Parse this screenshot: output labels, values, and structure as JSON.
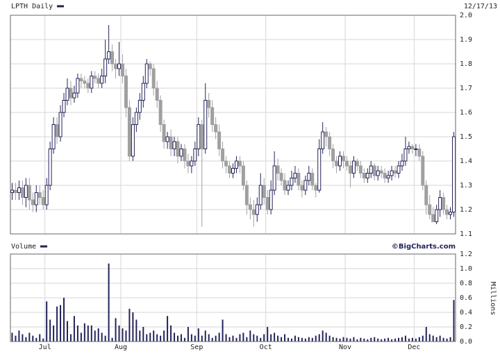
{
  "chart_data": [
    {
      "type": "candlestick",
      "title": "LPTH Daily",
      "date": "12/17/13",
      "up_color": "#22225a",
      "down_color": "#a0a0a0",
      "grid": true,
      "ylim": [
        1.1,
        2.0
      ],
      "yticks": [
        1.1,
        1.2,
        1.3,
        1.4,
        1.5,
        1.6,
        1.7,
        1.8,
        1.9,
        {
          "value": 2,
          "label": "2.0"
        }
      ],
      "open": [
        1.27,
        1.28,
        1.27,
        1.29,
        1.25,
        1.3,
        1.24,
        1.22,
        1.27,
        1.25,
        1.22,
        1.3,
        1.45,
        1.55,
        1.5,
        1.6,
        1.65,
        1.7,
        1.66,
        1.68,
        1.74,
        1.73,
        1.72,
        1.7,
        1.75,
        1.74,
        1.72,
        1.75,
        1.82,
        1.85,
        1.8,
        1.78,
        1.8,
        1.75,
        1.62,
        1.42,
        1.55,
        1.6,
        1.65,
        1.72,
        1.8,
        1.78,
        1.7,
        1.65,
        1.55,
        1.48,
        1.5,
        1.45,
        1.48,
        1.42,
        1.45,
        1.4,
        1.38,
        1.4,
        1.45,
        1.55,
        1.45,
        1.65,
        1.62,
        1.55,
        1.52,
        1.45,
        1.4,
        1.38,
        1.35,
        1.37,
        1.4,
        1.38,
        1.3,
        1.22,
        1.2,
        1.18,
        1.22,
        1.3,
        1.25,
        1.2,
        1.28,
        1.38,
        1.35,
        1.32,
        1.28,
        1.3,
        1.33,
        1.35,
        1.3,
        1.28,
        1.32,
        1.35,
        1.3,
        1.28,
        1.45,
        1.52,
        1.5,
        1.45,
        1.4,
        1.38,
        1.42,
        1.4,
        1.38,
        1.35,
        1.4,
        1.38,
        1.35,
        1.33,
        1.35,
        1.38,
        1.34,
        1.36,
        1.35,
        1.33,
        1.34,
        1.36,
        1.35,
        1.38,
        1.4,
        1.45,
        1.46,
        1.45,
        1.45,
        1.42,
        1.3,
        1.22,
        1.18,
        1.15,
        1.2,
        1.25,
        1.2,
        1.18,
        1.19
      ],
      "high": [
        1.31,
        1.31,
        1.32,
        1.32,
        1.33,
        1.33,
        1.27,
        1.3,
        1.3,
        1.28,
        1.33,
        1.48,
        1.58,
        1.58,
        1.63,
        1.68,
        1.74,
        1.73,
        1.71,
        1.76,
        1.76,
        1.75,
        1.74,
        1.77,
        1.77,
        1.76,
        1.78,
        1.9,
        1.96,
        1.88,
        1.82,
        1.89,
        1.84,
        1.78,
        1.65,
        1.58,
        1.62,
        1.68,
        1.75,
        1.82,
        1.81,
        1.8,
        1.73,
        1.67,
        1.57,
        1.52,
        1.53,
        1.5,
        1.5,
        1.47,
        1.47,
        1.43,
        1.42,
        1.48,
        1.58,
        1.57,
        1.72,
        1.68,
        1.65,
        1.58,
        1.55,
        1.48,
        1.42,
        1.4,
        1.39,
        1.42,
        1.42,
        1.4,
        1.32,
        1.25,
        1.24,
        1.25,
        1.35,
        1.33,
        1.28,
        1.32,
        1.44,
        1.41,
        1.37,
        1.35,
        1.32,
        1.36,
        1.38,
        1.37,
        1.32,
        1.34,
        1.38,
        1.37,
        1.31,
        1.49,
        1.56,
        1.54,
        1.52,
        1.47,
        1.42,
        1.44,
        1.44,
        1.42,
        1.4,
        1.42,
        1.41,
        1.4,
        1.37,
        1.37,
        1.4,
        1.39,
        1.38,
        1.38,
        1.37,
        1.36,
        1.38,
        1.38,
        1.4,
        1.43,
        1.5,
        1.48,
        1.47,
        1.47,
        1.47,
        1.44,
        1.32,
        1.26,
        1.21,
        1.22,
        1.28,
        1.27,
        1.22,
        1.21,
        1.52
      ],
      "low": [
        1.24,
        1.24,
        1.24,
        1.22,
        1.21,
        1.2,
        1.19,
        1.19,
        1.22,
        1.2,
        1.2,
        1.28,
        1.43,
        1.47,
        1.48,
        1.58,
        1.63,
        1.63,
        1.64,
        1.66,
        1.7,
        1.7,
        1.68,
        1.68,
        1.72,
        1.7,
        1.7,
        1.72,
        1.8,
        1.77,
        1.74,
        1.75,
        1.72,
        1.58,
        1.4,
        1.4,
        1.52,
        1.57,
        1.62,
        1.7,
        1.75,
        1.67,
        1.62,
        1.52,
        1.45,
        1.45,
        1.42,
        1.42,
        1.39,
        1.4,
        1.37,
        1.35,
        1.35,
        1.38,
        1.42,
        1.13,
        1.43,
        1.58,
        1.52,
        1.49,
        1.42,
        1.37,
        1.35,
        1.33,
        1.33,
        1.35,
        1.35,
        1.28,
        1.18,
        1.16,
        1.13,
        1.15,
        1.2,
        1.22,
        1.18,
        1.18,
        1.26,
        1.32,
        1.3,
        1.26,
        1.26,
        1.28,
        1.31,
        1.28,
        1.25,
        1.26,
        1.3,
        1.28,
        1.25,
        1.27,
        1.43,
        1.46,
        1.42,
        1.37,
        1.35,
        1.36,
        1.37,
        1.36,
        1.29,
        1.33,
        1.36,
        1.33,
        1.31,
        1.31,
        1.33,
        1.32,
        1.32,
        1.33,
        1.31,
        1.31,
        1.32,
        1.33,
        1.33,
        1.36,
        1.38,
        1.43,
        1.43,
        1.42,
        1.4,
        1.28,
        1.18,
        1.16,
        1.15,
        1.14,
        1.17,
        1.18,
        1.16,
        1.16,
        1.17
      ],
      "close": [
        1.28,
        1.27,
        1.29,
        1.25,
        1.3,
        1.24,
        1.22,
        1.27,
        1.25,
        1.22,
        1.3,
        1.45,
        1.55,
        1.5,
        1.6,
        1.65,
        1.7,
        1.66,
        1.68,
        1.74,
        1.73,
        1.72,
        1.7,
        1.75,
        1.74,
        1.72,
        1.75,
        1.82,
        1.85,
        1.8,
        1.78,
        1.8,
        1.75,
        1.62,
        1.42,
        1.55,
        1.6,
        1.65,
        1.72,
        1.8,
        1.78,
        1.7,
        1.65,
        1.55,
        1.48,
        1.5,
        1.45,
        1.48,
        1.42,
        1.45,
        1.4,
        1.38,
        1.4,
        1.45,
        1.55,
        1.45,
        1.65,
        1.62,
        1.55,
        1.52,
        1.45,
        1.4,
        1.38,
        1.35,
        1.37,
        1.4,
        1.38,
        1.3,
        1.22,
        1.2,
        1.18,
        1.22,
        1.3,
        1.25,
        1.2,
        1.28,
        1.38,
        1.35,
        1.32,
        1.28,
        1.3,
        1.33,
        1.35,
        1.3,
        1.28,
        1.32,
        1.35,
        1.3,
        1.28,
        1.45,
        1.52,
        1.5,
        1.45,
        1.4,
        1.38,
        1.42,
        1.4,
        1.38,
        1.35,
        1.4,
        1.38,
        1.35,
        1.33,
        1.35,
        1.38,
        1.34,
        1.36,
        1.35,
        1.33,
        1.34,
        1.36,
        1.35,
        1.38,
        1.4,
        1.45,
        1.46,
        1.45,
        1.45,
        1.42,
        1.3,
        1.22,
        1.18,
        1.15,
        1.2,
        1.25,
        1.2,
        1.18,
        1.19,
        1.5
      ]
    },
    {
      "type": "bar",
      "title": "Volume",
      "source": "©BigCharts.com",
      "ylabel": "Millions",
      "color": "#22225a",
      "grid": true,
      "ylim": [
        0,
        1.2
      ],
      "yticks": [
        {
          "value": 0,
          "label": "0.0"
        },
        0.2,
        0.4,
        0.6,
        0.8,
        {
          "value": 1,
          "label": "1.0"
        },
        1.2
      ],
      "categories": [
        null,
        null,
        null,
        null,
        null,
        null,
        null,
        null,
        null,
        null,
        "Jul",
        null,
        null,
        null,
        null,
        null,
        null,
        null,
        null,
        null,
        null,
        null,
        null,
        null,
        null,
        null,
        null,
        null,
        null,
        null,
        null,
        null,
        "Aug",
        null,
        null,
        null,
        null,
        null,
        null,
        null,
        null,
        null,
        null,
        null,
        null,
        null,
        null,
        null,
        null,
        null,
        null,
        null,
        null,
        null,
        "Sep",
        null,
        null,
        null,
        null,
        null,
        null,
        null,
        null,
        null,
        null,
        null,
        null,
        null,
        null,
        null,
        null,
        null,
        null,
        null,
        "Oct",
        null,
        null,
        null,
        null,
        null,
        null,
        null,
        null,
        null,
        null,
        null,
        null,
        null,
        null,
        null,
        null,
        null,
        null,
        null,
        null,
        null,
        null,
        "Nov",
        null,
        null,
        null,
        null,
        null,
        null,
        null,
        null,
        null,
        null,
        null,
        null,
        null,
        null,
        null,
        null,
        null,
        null,
        null,
        "Dec",
        null,
        null,
        null,
        null,
        null,
        null,
        null,
        null,
        null,
        null,
        null
      ],
      "values": [
        0.12,
        0.08,
        0.15,
        0.1,
        0.06,
        0.12,
        0.08,
        0.05,
        0.1,
        0.04,
        0.55,
        0.3,
        0.22,
        0.48,
        0.5,
        0.6,
        0.28,
        0.1,
        0.35,
        0.22,
        0.12,
        0.25,
        0.22,
        0.22,
        0.15,
        0.18,
        0.12,
        0.08,
        1.07,
        0.05,
        0.32,
        0.22,
        0.18,
        0.15,
        0.45,
        0.4,
        0.3,
        0.15,
        0.2,
        0.1,
        0.12,
        0.15,
        0.1,
        0.08,
        0.15,
        0.35,
        0.22,
        0.12,
        0.08,
        0.1,
        0.05,
        0.2,
        0.1,
        0.08,
        0.18,
        0.08,
        0.15,
        0.1,
        0.05,
        0.08,
        0.12,
        0.3,
        0.1,
        0.06,
        0.08,
        0.05,
        0.1,
        0.12,
        0.06,
        0.15,
        0.1,
        0.08,
        0.05,
        0.1,
        0.2,
        0.1,
        0.12,
        0.08,
        0.06,
        0.1,
        0.05,
        0.04,
        0.08,
        0.06,
        0.05,
        0.04,
        0.06,
        0.05,
        0.08,
        0.1,
        0.15,
        0.12,
        0.08,
        0.06,
        0.05,
        0.04,
        0.06,
        0.05,
        0.04,
        0.06,
        0.03,
        0.05,
        0.04,
        0.03,
        0.05,
        0.06,
        0.04,
        0.03,
        0.04,
        0.05,
        0.03,
        0.04,
        0.05,
        0.06,
        0.08,
        0.04,
        0.05,
        0.04,
        0.06,
        0.08,
        0.2,
        0.1,
        0.08,
        0.06,
        0.08,
        0.05,
        0.04,
        0.06,
        0.57
      ]
    }
  ]
}
